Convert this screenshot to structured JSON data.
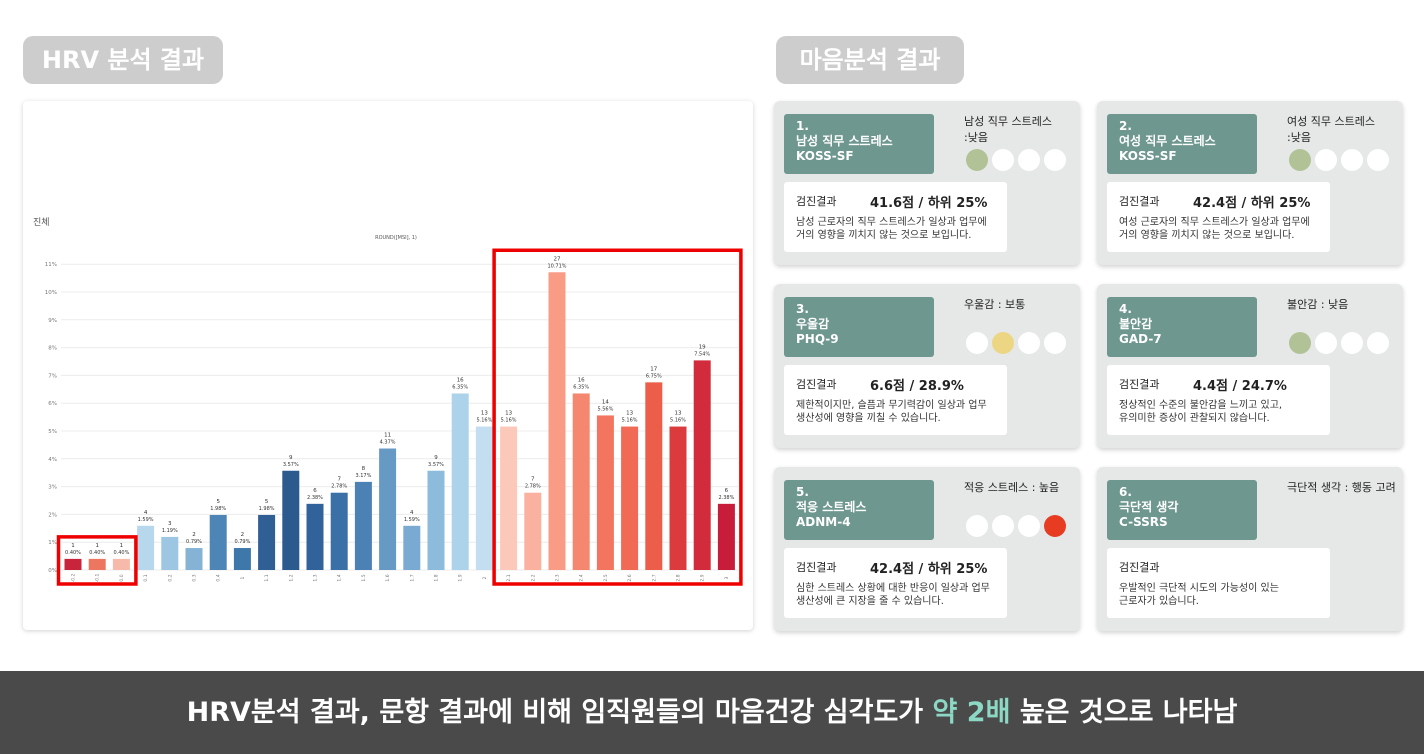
{
  "headers": {
    "hrv": "HRV 분석 결과",
    "mind": "마음분석 결과"
  },
  "chart_data": {
    "type": "bar",
    "title": "진체",
    "subtitle": "ROUND([MSI], 1)",
    "ylabel": "",
    "yticks": [
      "0%",
      "1%",
      "2%",
      "3%",
      "4%",
      "5%",
      "6%",
      "7%",
      "8%",
      "9%",
      "10%",
      "11%"
    ],
    "ylim": [
      0,
      11.5
    ],
    "grid": true,
    "bars": [
      {
        "x": "-0.2",
        "count": "1",
        "pct": 0.4,
        "label": "0.40%",
        "color": "#c8243b"
      },
      {
        "x": "-0.1",
        "count": "1",
        "pct": 0.4,
        "label": "0.40%",
        "color": "#ec7660"
      },
      {
        "x": "0.0",
        "count": "1",
        "pct": 0.4,
        "label": "0.40%",
        "color": "#f7b9a9"
      },
      {
        "x": "0.1",
        "count": "4",
        "pct": 1.59,
        "label": "1.59%",
        "color": "#b7d8ec"
      },
      {
        "x": "0.2",
        "count": "3",
        "pct": 1.19,
        "label": "1.19%",
        "color": "#9cc6e2"
      },
      {
        "x": "0.3",
        "count": "2",
        "pct": 0.79,
        "label": "0.79%",
        "color": "#84b3d6"
      },
      {
        "x": "0.4",
        "count": "5",
        "pct": 1.98,
        "label": "1.98%",
        "color": "#4d85b7"
      },
      {
        "x": "1",
        "count": "2",
        "pct": 0.79,
        "label": "0.79%",
        "color": "#3e77aa"
      },
      {
        "x": "1.1",
        "count": "5",
        "pct": 1.98,
        "label": "1.98%",
        "color": "#2f5f94"
      },
      {
        "x": "1.2",
        "count": "9",
        "pct": 3.57,
        "label": "3.57%",
        "color": "#2b5a8e"
      },
      {
        "x": "1.3",
        "count": "6",
        "pct": 2.38,
        "label": "2.38%",
        "color": "#31639a"
      },
      {
        "x": "1.4",
        "count": "7",
        "pct": 2.78,
        "label": "2.78%",
        "color": "#3b70a6"
      },
      {
        "x": "1.5",
        "count": "8",
        "pct": 3.17,
        "label": "3.17%",
        "color": "#4b81b4"
      },
      {
        "x": "1.6",
        "count": "11",
        "pct": 4.37,
        "label": "4.37%",
        "color": "#6699c4"
      },
      {
        "x": "1.7",
        "count": "4",
        "pct": 1.59,
        "label": "1.59%",
        "color": "#7aaad2"
      },
      {
        "x": "1.8",
        "count": "9",
        "pct": 3.57,
        "label": "3.57%",
        "color": "#8dbbdc"
      },
      {
        "x": "1.9",
        "count": "16",
        "pct": 6.35,
        "label": "6.35%",
        "color": "#acd3ea"
      },
      {
        "x": "2",
        "count": "13",
        "pct": 5.16,
        "label": "5.16%",
        "color": "#c2def0"
      },
      {
        "x": "2.1",
        "count": "13",
        "pct": 5.16,
        "label": "5.16%",
        "color": "#fcc8ba"
      },
      {
        "x": "2.2",
        "count": "7",
        "pct": 2.78,
        "label": "2.78%",
        "color": "#fbb19f"
      },
      {
        "x": "2.3",
        "count": "27",
        "pct": 10.71,
        "label": "10.71%",
        "color": "#f99b85"
      },
      {
        "x": "2.4",
        "count": "16",
        "pct": 6.35,
        "label": "6.35%",
        "color": "#f58670"
      },
      {
        "x": "2.5",
        "count": "14",
        "pct": 5.56,
        "label": "5.56%",
        "color": "#f37560"
      },
      {
        "x": "2.6",
        "count": "13",
        "pct": 5.16,
        "label": "5.16%",
        "color": "#f06a55"
      },
      {
        "x": "2.7",
        "count": "17",
        "pct": 6.75,
        "label": "6.75%",
        "color": "#ec5e4a"
      },
      {
        "x": "2.8",
        "count": "13",
        "pct": 5.16,
        "label": "5.16%",
        "color": "#dc3b3d"
      },
      {
        "x": "2.9",
        "count": "19",
        "pct": 7.54,
        "label": "7.54%",
        "color": "#d22c3c"
      },
      {
        "x": "3",
        "count": "6",
        "pct": 2.38,
        "label": "2.38%",
        "color": "#c71d3a"
      }
    ],
    "highlights": [
      {
        "from": 0,
        "to": 2,
        "color": "#ee0000"
      },
      {
        "from": 18,
        "to": 27,
        "color": "#ee0000"
      }
    ]
  },
  "cards": [
    {
      "num": "1.",
      "title": "남성 직무 스트레스",
      "code": "KOSS-SF",
      "status": [
        "남성 직무 스트레스",
        ":낮음"
      ],
      "level": 1,
      "level_color": "green",
      "score_label": "검진결과",
      "score": "41.6점  /  하위 25%",
      "desc": [
        "남성 근로자의 직무 스트레스가 일상과 업무에",
        "거의 영향을 끼치지 않는 것으로 보입니다."
      ]
    },
    {
      "num": "2.",
      "title": "여성 직무 스트레스",
      "code": "KOSS-SF",
      "status": [
        "여성 직무 스트레스",
        ":낮음"
      ],
      "level": 1,
      "level_color": "green",
      "score_label": "검진결과",
      "score": "42.4점  /  하위 25%",
      "desc": [
        "여성 근로자의 직무 스트레스가 일상과 업무에",
        "거의 영향을 끼치지 않는 것으로 보입니다."
      ]
    },
    {
      "num": "3.",
      "title": "우울감",
      "code": "PHQ-9",
      "status": [
        "우울감 : 보통",
        ""
      ],
      "level": 2,
      "level_color": "yellow",
      "score_label": "검진결과",
      "score": "6.6점  /  28.9%",
      "desc": [
        "제한적이지만, 슬픔과 무기력감이 일상과 업무",
        "생산성에 영향을 끼칠 수 있습니다."
      ]
    },
    {
      "num": "4.",
      "title": "불안감",
      "code": "GAD-7",
      "status": [
        "불안감 : 낮음",
        ""
      ],
      "level": 1,
      "level_color": "green",
      "score_label": "검진결과",
      "score": "4.4점  /  24.7%",
      "desc": [
        "정상적인 수준의 불안감을 느끼고 있고,",
        "유의미한 증상이 관찰되지 않습니다."
      ]
    },
    {
      "num": "5.",
      "title": "적응 스트레스",
      "code": "ADNM-4",
      "status": [
        "적응 스트레스 : 높음",
        ""
      ],
      "level": 4,
      "level_color": "red",
      "score_label": "검진결과",
      "score": "42.4점  /  하위 25%",
      "desc": [
        "심한 스트레스 상황에 대한 반응이 일상과 업무",
        "생산성에 큰 지장을 줄 수 있습니다."
      ]
    },
    {
      "num": "6.",
      "title": "극단적 생각",
      "code": "C-SSRS",
      "status": [
        "극단적 생각 : 행동 고려",
        ""
      ],
      "level": 0,
      "level_color": "none",
      "score_label": "검진결과",
      "score": "",
      "desc": [
        "우발적인 극단적 시도의 가능성이 있는",
        "근로자가 있습니다."
      ]
    }
  ],
  "banner": {
    "pre": "HRV분석 결과, 문항 결과에 비해 임직원들의 마음건강 심각도가 ",
    "highlight": "약 2배",
    "post": " 높은 것으로 나타남"
  }
}
